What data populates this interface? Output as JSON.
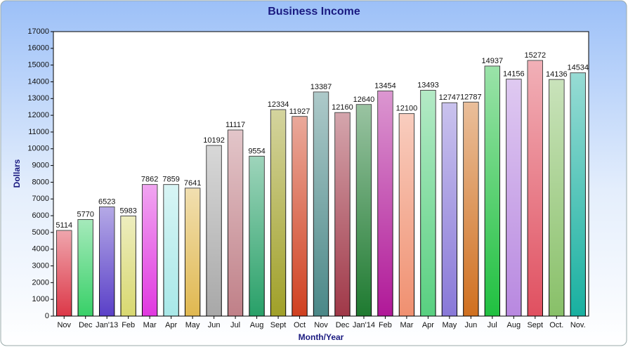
{
  "chart_data": {
    "type": "bar",
    "title": "Business Income",
    "x_label": "Month/Year",
    "y_label": "Dollars",
    "categories": [
      "Nov",
      "Dec",
      "Jan'13",
      "Feb",
      "Mar",
      "Apr",
      "May",
      "Jun",
      "Jul",
      "Aug",
      "Sept",
      "Oct",
      "Nov",
      "Dec",
      "Jan'14",
      "Feb",
      "Mar",
      "Apr",
      "May",
      "Jun",
      "Jul",
      "Aug",
      "Sept",
      "Oct.",
      "Nov."
    ],
    "values": [
      5114,
      5770,
      6523,
      5983,
      7862,
      7859,
      7641,
      10192,
      11117,
      9554,
      12334,
      11927,
      13387,
      12160,
      12640,
      13454,
      12100,
      13493,
      12747,
      12787,
      14937,
      14156,
      15272,
      14136,
      14534
    ],
    "colors": [
      "#dc3848",
      "#38d068",
      "#5a40c8",
      "#d8d870",
      "#e038e0",
      "#a8e8e8",
      "#e0b850",
      "#a8a8a8",
      "#c08088",
      "#28a068",
      "#a0a028",
      "#d04020",
      "#4a8888",
      "#a03848",
      "#1e7a30",
      "#b01898",
      "#f09070",
      "#58d080",
      "#8878d8",
      "#d07020",
      "#20c040",
      "#b888e0",
      "#e05060",
      "#88c068",
      "#18b0a0"
    ],
    "ylim": [
      0,
      17000
    ],
    "yticks": [
      0,
      1000,
      2000,
      3000,
      4000,
      5000,
      6000,
      7000,
      8000,
      9000,
      10000,
      11000,
      12000,
      13000,
      14000,
      15000,
      16000,
      17000
    ]
  }
}
